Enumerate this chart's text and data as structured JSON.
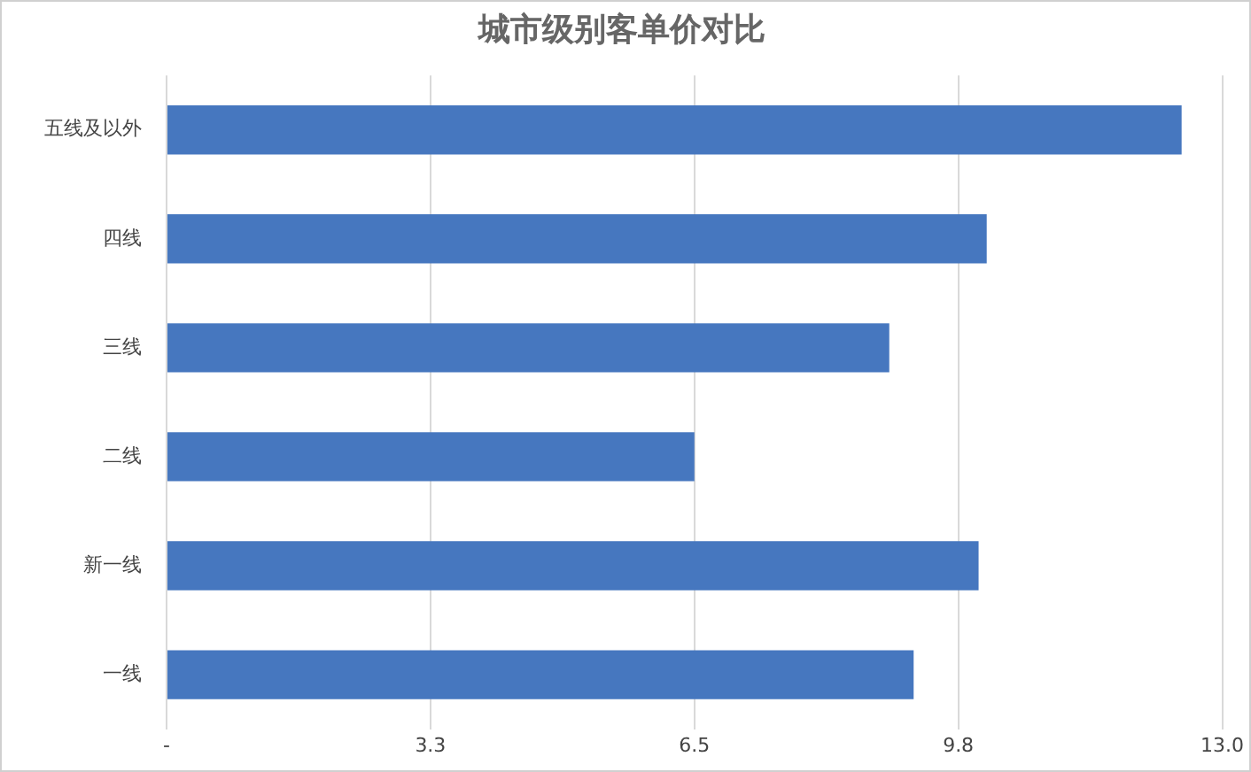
{
  "chart_data": {
    "type": "bar",
    "orientation": "horizontal",
    "title": "城市级别客单价对比",
    "categories": [
      "五线及以外",
      "四线",
      "三线",
      "二线",
      "新一线",
      "一线"
    ],
    "values": [
      12.5,
      10.1,
      8.9,
      6.5,
      10.0,
      9.2
    ],
    "color": "#4677bf",
    "xlim": [
      0,
      13
    ],
    "xticks": [
      {
        "value": 0,
        "label": "-"
      },
      {
        "value": 3.25,
        "label": "3.3"
      },
      6.5,
      {
        "value": 9.75,
        "label": "9.8"
      },
      {
        "value": 13,
        "label": "13.0"
      }
    ],
    "grid": "x",
    "legend": false
  }
}
